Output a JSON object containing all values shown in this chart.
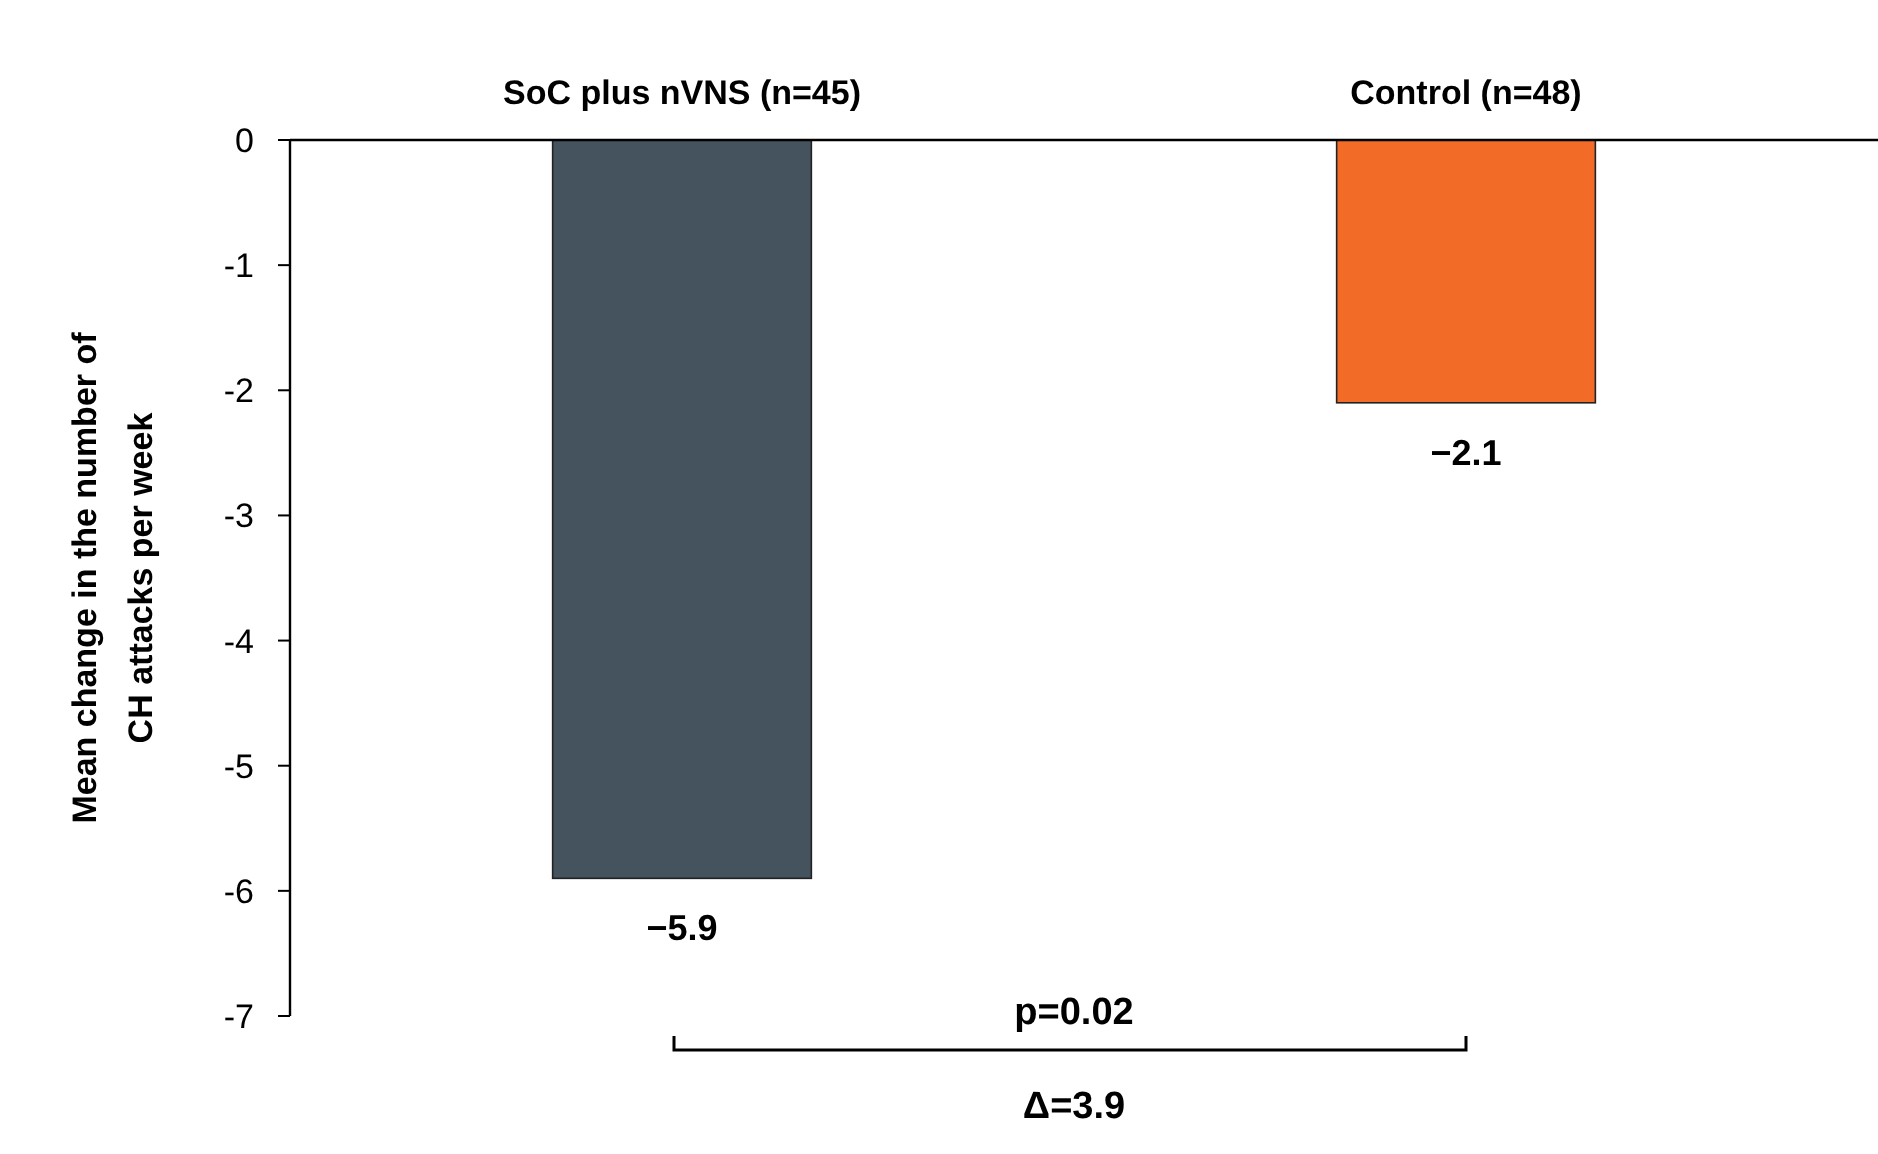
{
  "chart_data": {
    "type": "bar",
    "categories": [
      "SoC plus nVNS (n=45)",
      "Control (n=48)"
    ],
    "values": [
      -5.9,
      -2.1
    ],
    "colors": [
      "#45535e",
      "#f26b27"
    ],
    "value_labels": [
      "−5.9",
      "−2.1"
    ],
    "ylabel": "Mean change in the  number of CH attacks per week",
    "ylim": [
      -7,
      0
    ],
    "yticks": [
      0,
      -1,
      -2,
      -3,
      -4,
      -5,
      -6,
      -7
    ],
    "annotations": [
      "p=0.02",
      "Δ=3.9"
    ]
  }
}
